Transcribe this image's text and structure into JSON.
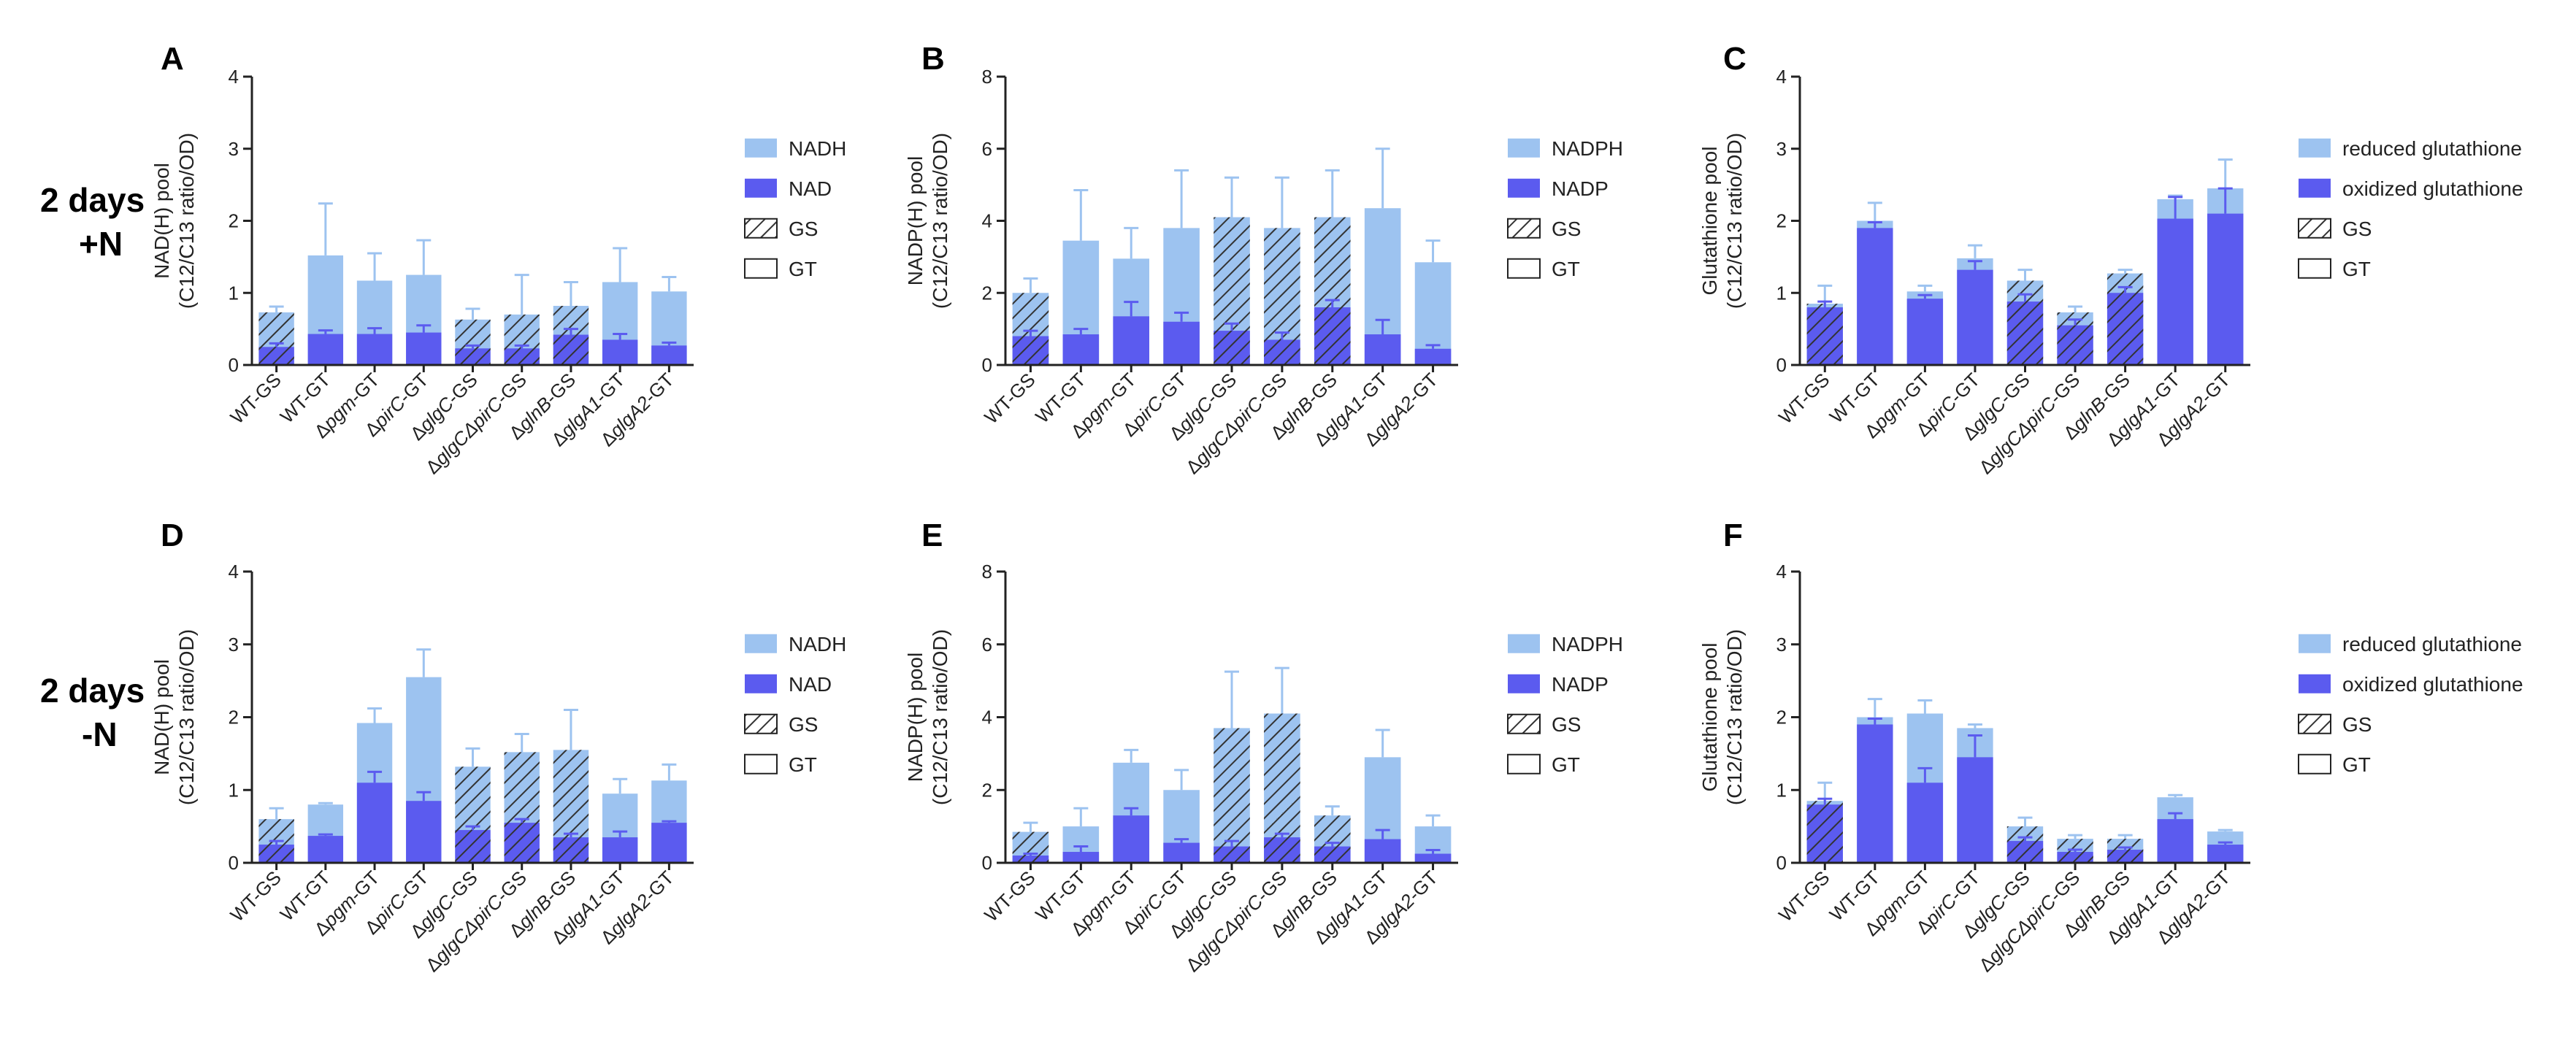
{
  "row_labels": [
    {
      "line1": "2 days",
      "line2": "+N"
    },
    {
      "line1": "2 days",
      "line2": "-N"
    }
  ],
  "colors": {
    "light": "#9DC3F0",
    "dark": "#5B5BEF",
    "light_err": "#9DC3F0",
    "dark_err": "#5B5BEF",
    "axis": "#222222",
    "hatch": "#333333"
  },
  "chart_data": [
    {
      "panel": "A",
      "type": "bar",
      "ylabel_line1": "NAD(H) pool",
      "ylabel_line2": "(C12/C13 ratio/OD)",
      "ylim": [
        0,
        4
      ],
      "yticks": [
        0,
        1,
        2,
        3,
        4
      ],
      "categories": [
        {
          "pre": "",
          "it": "",
          "post": "WT-GS"
        },
        {
          "pre": "",
          "it": "",
          "post": "WT-GT"
        },
        {
          "pre": "Δ",
          "it": "pgm",
          "post": "-GT"
        },
        {
          "pre": "Δ",
          "it": "pirC",
          "post": "-GT"
        },
        {
          "pre": "Δ",
          "it": "glgC",
          "post": "-GS"
        },
        {
          "pre": "Δ",
          "it": "glgCΔpirC",
          "post": "-GS"
        },
        {
          "pre": "Δ",
          "it": "glnB",
          "post": "-GS"
        },
        {
          "pre": "Δ",
          "it": "glgA1",
          "post": "-GT"
        },
        {
          "pre": "Δ",
          "it": "glgA2",
          "post": "-GT"
        }
      ],
      "strain": [
        "GS",
        "GT",
        "GT",
        "GT",
        "GS",
        "GS",
        "GS",
        "GT",
        "GT"
      ],
      "series": [
        {
          "name": "NADH",
          "values": [
            0.73,
            1.52,
            1.17,
            1.25,
            0.63,
            0.7,
            0.82,
            1.15,
            1.02
          ],
          "errors": [
            0.08,
            0.72,
            0.38,
            0.48,
            0.15,
            0.55,
            0.33,
            0.47,
            0.2
          ]
        },
        {
          "name": "NAD",
          "values": [
            0.25,
            0.43,
            0.43,
            0.45,
            0.23,
            0.23,
            0.42,
            0.35,
            0.27
          ],
          "errors": [
            0.05,
            0.05,
            0.08,
            0.1,
            0.04,
            0.04,
            0.08,
            0.08,
            0.04
          ]
        }
      ],
      "legend": [
        "NADH",
        "NAD",
        "GS",
        "GT"
      ]
    },
    {
      "panel": "B",
      "type": "bar",
      "ylabel_line1": "NADP(H) pool",
      "ylabel_line2": "(C12/C13 ratio/OD)",
      "ylim": [
        0,
        8
      ],
      "yticks": [
        0,
        2,
        4,
        6,
        8
      ],
      "categories": [
        {
          "pre": "",
          "it": "",
          "post": "WT-GS"
        },
        {
          "pre": "",
          "it": "",
          "post": "WT-GT"
        },
        {
          "pre": "Δ",
          "it": "pgm",
          "post": "-GT"
        },
        {
          "pre": "Δ",
          "it": "pirC",
          "post": "-GT"
        },
        {
          "pre": "Δ",
          "it": "glgC",
          "post": "-GS"
        },
        {
          "pre": "Δ",
          "it": "glgCΔpirC",
          "post": "-GS"
        },
        {
          "pre": "Δ",
          "it": "glnB",
          "post": "-GS"
        },
        {
          "pre": "Δ",
          "it": "glgA1",
          "post": "-GT"
        },
        {
          "pre": "Δ",
          "it": "glgA2",
          "post": "-GT"
        }
      ],
      "strain": [
        "GS",
        "GT",
        "GT",
        "GT",
        "GS",
        "GS",
        "GS",
        "GT",
        "GT"
      ],
      "series": [
        {
          "name": "NADPH",
          "values": [
            2.0,
            3.45,
            2.95,
            3.8,
            4.1,
            3.8,
            4.1,
            4.35,
            2.85
          ],
          "errors": [
            0.4,
            1.4,
            0.85,
            1.6,
            1.1,
            1.4,
            1.3,
            1.65,
            0.6
          ]
        },
        {
          "name": "NADP",
          "values": [
            0.8,
            0.85,
            1.35,
            1.2,
            0.95,
            0.7,
            1.6,
            0.85,
            0.45
          ],
          "errors": [
            0.15,
            0.15,
            0.4,
            0.25,
            0.2,
            0.2,
            0.2,
            0.4,
            0.1
          ]
        }
      ],
      "legend": [
        "NADPH",
        "NADP",
        "GS",
        "GT"
      ]
    },
    {
      "panel": "C",
      "type": "bar",
      "ylabel_line1": "Glutathione pool",
      "ylabel_line2": "(C12/C13 ratio/OD)",
      "ylim": [
        0,
        4
      ],
      "yticks": [
        0,
        1,
        2,
        3,
        4
      ],
      "categories": [
        {
          "pre": "",
          "it": "",
          "post": "WT-GS"
        },
        {
          "pre": "",
          "it": "",
          "post": "WT-GT"
        },
        {
          "pre": "Δ",
          "it": "pgm",
          "post": "-GT"
        },
        {
          "pre": "Δ",
          "it": "pirC",
          "post": "-GT"
        },
        {
          "pre": "Δ",
          "it": "glgC",
          "post": "-GS"
        },
        {
          "pre": "Δ",
          "it": "glgCΔpirC",
          "post": "-GS"
        },
        {
          "pre": "Δ",
          "it": "glnB",
          "post": "-GS"
        },
        {
          "pre": "Δ",
          "it": "glgA1",
          "post": "-GT"
        },
        {
          "pre": "Δ",
          "it": "glgA2",
          "post": "-GT"
        }
      ],
      "strain": [
        "GS",
        "GT",
        "GT",
        "GT",
        "GS",
        "GS",
        "GS",
        "GT",
        "GT"
      ],
      "series": [
        {
          "name": "reduced glutathione",
          "values": [
            0.85,
            2.0,
            1.02,
            1.48,
            1.17,
            0.73,
            1.27,
            2.3,
            2.45
          ],
          "errors": [
            0.25,
            0.25,
            0.08,
            0.18,
            0.15,
            0.08,
            0.05,
            0.05,
            0.4
          ]
        },
        {
          "name": "oxidized glutathione",
          "values": [
            0.8,
            1.9,
            0.92,
            1.32,
            0.88,
            0.55,
            1.0,
            2.03,
            2.1
          ],
          "errors": [
            0.08,
            0.08,
            0.05,
            0.12,
            0.1,
            0.08,
            0.08,
            0.3,
            0.35
          ]
        }
      ],
      "legend": [
        "reduced glutathione",
        "oxidized glutathione",
        "GS",
        "GT"
      ]
    },
    {
      "panel": "D",
      "type": "bar",
      "ylabel_line1": "NAD(H) pool",
      "ylabel_line2": "(C12/C13 ratio/OD)",
      "ylim": [
        0,
        4
      ],
      "yticks": [
        0,
        1,
        2,
        3,
        4
      ],
      "categories": [
        {
          "pre": "",
          "it": "",
          "post": "WT-GS"
        },
        {
          "pre": "",
          "it": "",
          "post": "WT-GT"
        },
        {
          "pre": "Δ",
          "it": "pgm",
          "post": "-GT"
        },
        {
          "pre": "Δ",
          "it": "pirC",
          "post": "-GT"
        },
        {
          "pre": "Δ",
          "it": "glgC",
          "post": "-GS"
        },
        {
          "pre": "Δ",
          "it": "glgCΔpirC",
          "post": "-GS"
        },
        {
          "pre": "Δ",
          "it": "glnB",
          "post": "-GS"
        },
        {
          "pre": "Δ",
          "it": "glgA1",
          "post": "-GT"
        },
        {
          "pre": "Δ",
          "it": "glgA2",
          "post": "-GT"
        }
      ],
      "strain": [
        "GS",
        "GT",
        "GT",
        "GT",
        "GS",
        "GS",
        "GS",
        "GT",
        "GT"
      ],
      "series": [
        {
          "name": "NADH",
          "values": [
            0.6,
            0.8,
            1.92,
            2.55,
            1.32,
            1.52,
            1.55,
            0.95,
            1.13
          ],
          "errors": [
            0.15,
            0.02,
            0.2,
            0.38,
            0.25,
            0.25,
            0.55,
            0.2,
            0.22
          ]
        },
        {
          "name": "NAD",
          "values": [
            0.25,
            0.37,
            1.1,
            0.85,
            0.45,
            0.55,
            0.35,
            0.35,
            0.55
          ],
          "errors": [
            0.05,
            0.02,
            0.15,
            0.12,
            0.05,
            0.05,
            0.05,
            0.08,
            0.02
          ]
        }
      ],
      "legend": [
        "NADH",
        "NAD",
        "GS",
        "GT"
      ]
    },
    {
      "panel": "E",
      "type": "bar",
      "ylabel_line1": "NADP(H) pool",
      "ylabel_line2": "(C12/C13 ratio/OD)",
      "ylim": [
        0,
        8
      ],
      "yticks": [
        0,
        2,
        4,
        6,
        8
      ],
      "categories": [
        {
          "pre": "",
          "it": "",
          "post": "WT-GS"
        },
        {
          "pre": "",
          "it": "",
          "post": "WT-GT"
        },
        {
          "pre": "Δ",
          "it": "pgm",
          "post": "-GT"
        },
        {
          "pre": "Δ",
          "it": "pirC",
          "post": "-GT"
        },
        {
          "pre": "Δ",
          "it": "glgC",
          "post": "-GS"
        },
        {
          "pre": "Δ",
          "it": "glgCΔpirC",
          "post": "-GS"
        },
        {
          "pre": "Δ",
          "it": "glnB",
          "post": "-GS"
        },
        {
          "pre": "Δ",
          "it": "glgA1",
          "post": "-GT"
        },
        {
          "pre": "Δ",
          "it": "glgA2",
          "post": "-GT"
        }
      ],
      "strain": [
        "GS",
        "GT",
        "GT",
        "GT",
        "GS",
        "GS",
        "GS",
        "GT",
        "GT"
      ],
      "series": [
        {
          "name": "NADPH",
          "values": [
            0.85,
            1.0,
            2.75,
            2.0,
            3.7,
            4.1,
            1.3,
            2.9,
            1.0
          ],
          "errors": [
            0.25,
            0.5,
            0.35,
            0.55,
            1.55,
            1.25,
            0.25,
            0.75,
            0.3
          ]
        },
        {
          "name": "NADP",
          "values": [
            0.2,
            0.3,
            1.3,
            0.55,
            0.45,
            0.7,
            0.45,
            0.65,
            0.25
          ],
          "errors": [
            0.05,
            0.15,
            0.2,
            0.1,
            0.15,
            0.1,
            0.1,
            0.25,
            0.1
          ]
        }
      ],
      "legend": [
        "NADPH",
        "NADP",
        "GS",
        "GT"
      ]
    },
    {
      "panel": "F",
      "type": "bar",
      "ylabel_line1": "Glutathione pool",
      "ylabel_line2": "(C12/C13 ratio/OD)",
      "ylim": [
        0,
        4
      ],
      "yticks": [
        0,
        1,
        2,
        3,
        4
      ],
      "categories": [
        {
          "pre": "",
          "it": "",
          "post": "WT-GS"
        },
        {
          "pre": "",
          "it": "",
          "post": "WT-GT"
        },
        {
          "pre": "Δ",
          "it": "pgm",
          "post": "-GT"
        },
        {
          "pre": "Δ",
          "it": "pirC",
          "post": "-GT"
        },
        {
          "pre": "Δ",
          "it": "glgC",
          "post": "-GS"
        },
        {
          "pre": "Δ",
          "it": "glgCΔpirC",
          "post": "-GS"
        },
        {
          "pre": "Δ",
          "it": "glnB",
          "post": "-GS"
        },
        {
          "pre": "Δ",
          "it": "glgA1",
          "post": "-GT"
        },
        {
          "pre": "Δ",
          "it": "glgA2",
          "post": "-GT"
        }
      ],
      "strain": [
        "GS",
        "GT",
        "GT",
        "GT",
        "GS",
        "GS",
        "GS",
        "GT",
        "GT"
      ],
      "series": [
        {
          "name": "reduced glutathione",
          "values": [
            0.85,
            2.0,
            2.05,
            1.85,
            0.5,
            0.33,
            0.33,
            0.9,
            0.43
          ],
          "errors": [
            0.25,
            0.25,
            0.18,
            0.05,
            0.12,
            0.05,
            0.05,
            0.03,
            0.02
          ]
        },
        {
          "name": "oxidized glutathione",
          "values": [
            0.8,
            1.9,
            1.1,
            1.45,
            0.3,
            0.15,
            0.18,
            0.6,
            0.25
          ],
          "errors": [
            0.08,
            0.08,
            0.2,
            0.3,
            0.05,
            0.03,
            0.03,
            0.08,
            0.03
          ]
        }
      ],
      "legend": [
        "reduced glutathione",
        "oxidized glutathione",
        "GS",
        "GT"
      ]
    }
  ]
}
